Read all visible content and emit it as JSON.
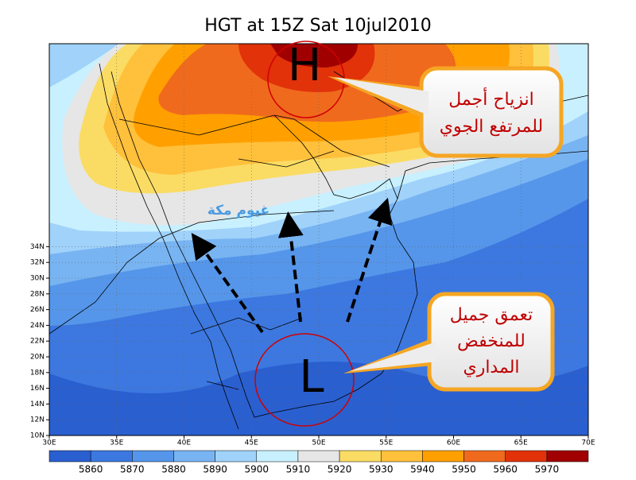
{
  "title": "HGT at 15Z Sat 10jul2010",
  "lat_ticks": [
    "10N",
    "12N",
    "14N",
    "16N",
    "18N",
    "20N",
    "22N",
    "24N",
    "26N",
    "28N",
    "30N",
    "32N",
    "34N"
  ],
  "lon_ticks": [
    "30E",
    "35E",
    "40E",
    "45E",
    "50E",
    "55E",
    "60E",
    "65E",
    "70E"
  ],
  "colorbar": {
    "labels": [
      5860,
      5870,
      5880,
      5890,
      5900,
      5910,
      5920,
      5930,
      5940,
      5950,
      5960,
      5970
    ],
    "colors": [
      "#2a5fd0",
      "#3c78e0",
      "#5596ea",
      "#78b4f2",
      "#a0d2fa",
      "#c8f0ff",
      "#e6e6e6",
      "#fadc64",
      "#ffc03c",
      "#ffa000",
      "#f06a1e",
      "#e1320a",
      "#a00000"
    ]
  },
  "markers": {
    "high": "H",
    "low": "L"
  },
  "annotations": {
    "mecca_clouds": "غيوم مكة",
    "high_callout": [
      "انزياح أجمل",
      "للمرتفع الجوي"
    ],
    "low_callout": [
      "تعمق جميل",
      "للمنخفض",
      "المداري"
    ]
  }
}
